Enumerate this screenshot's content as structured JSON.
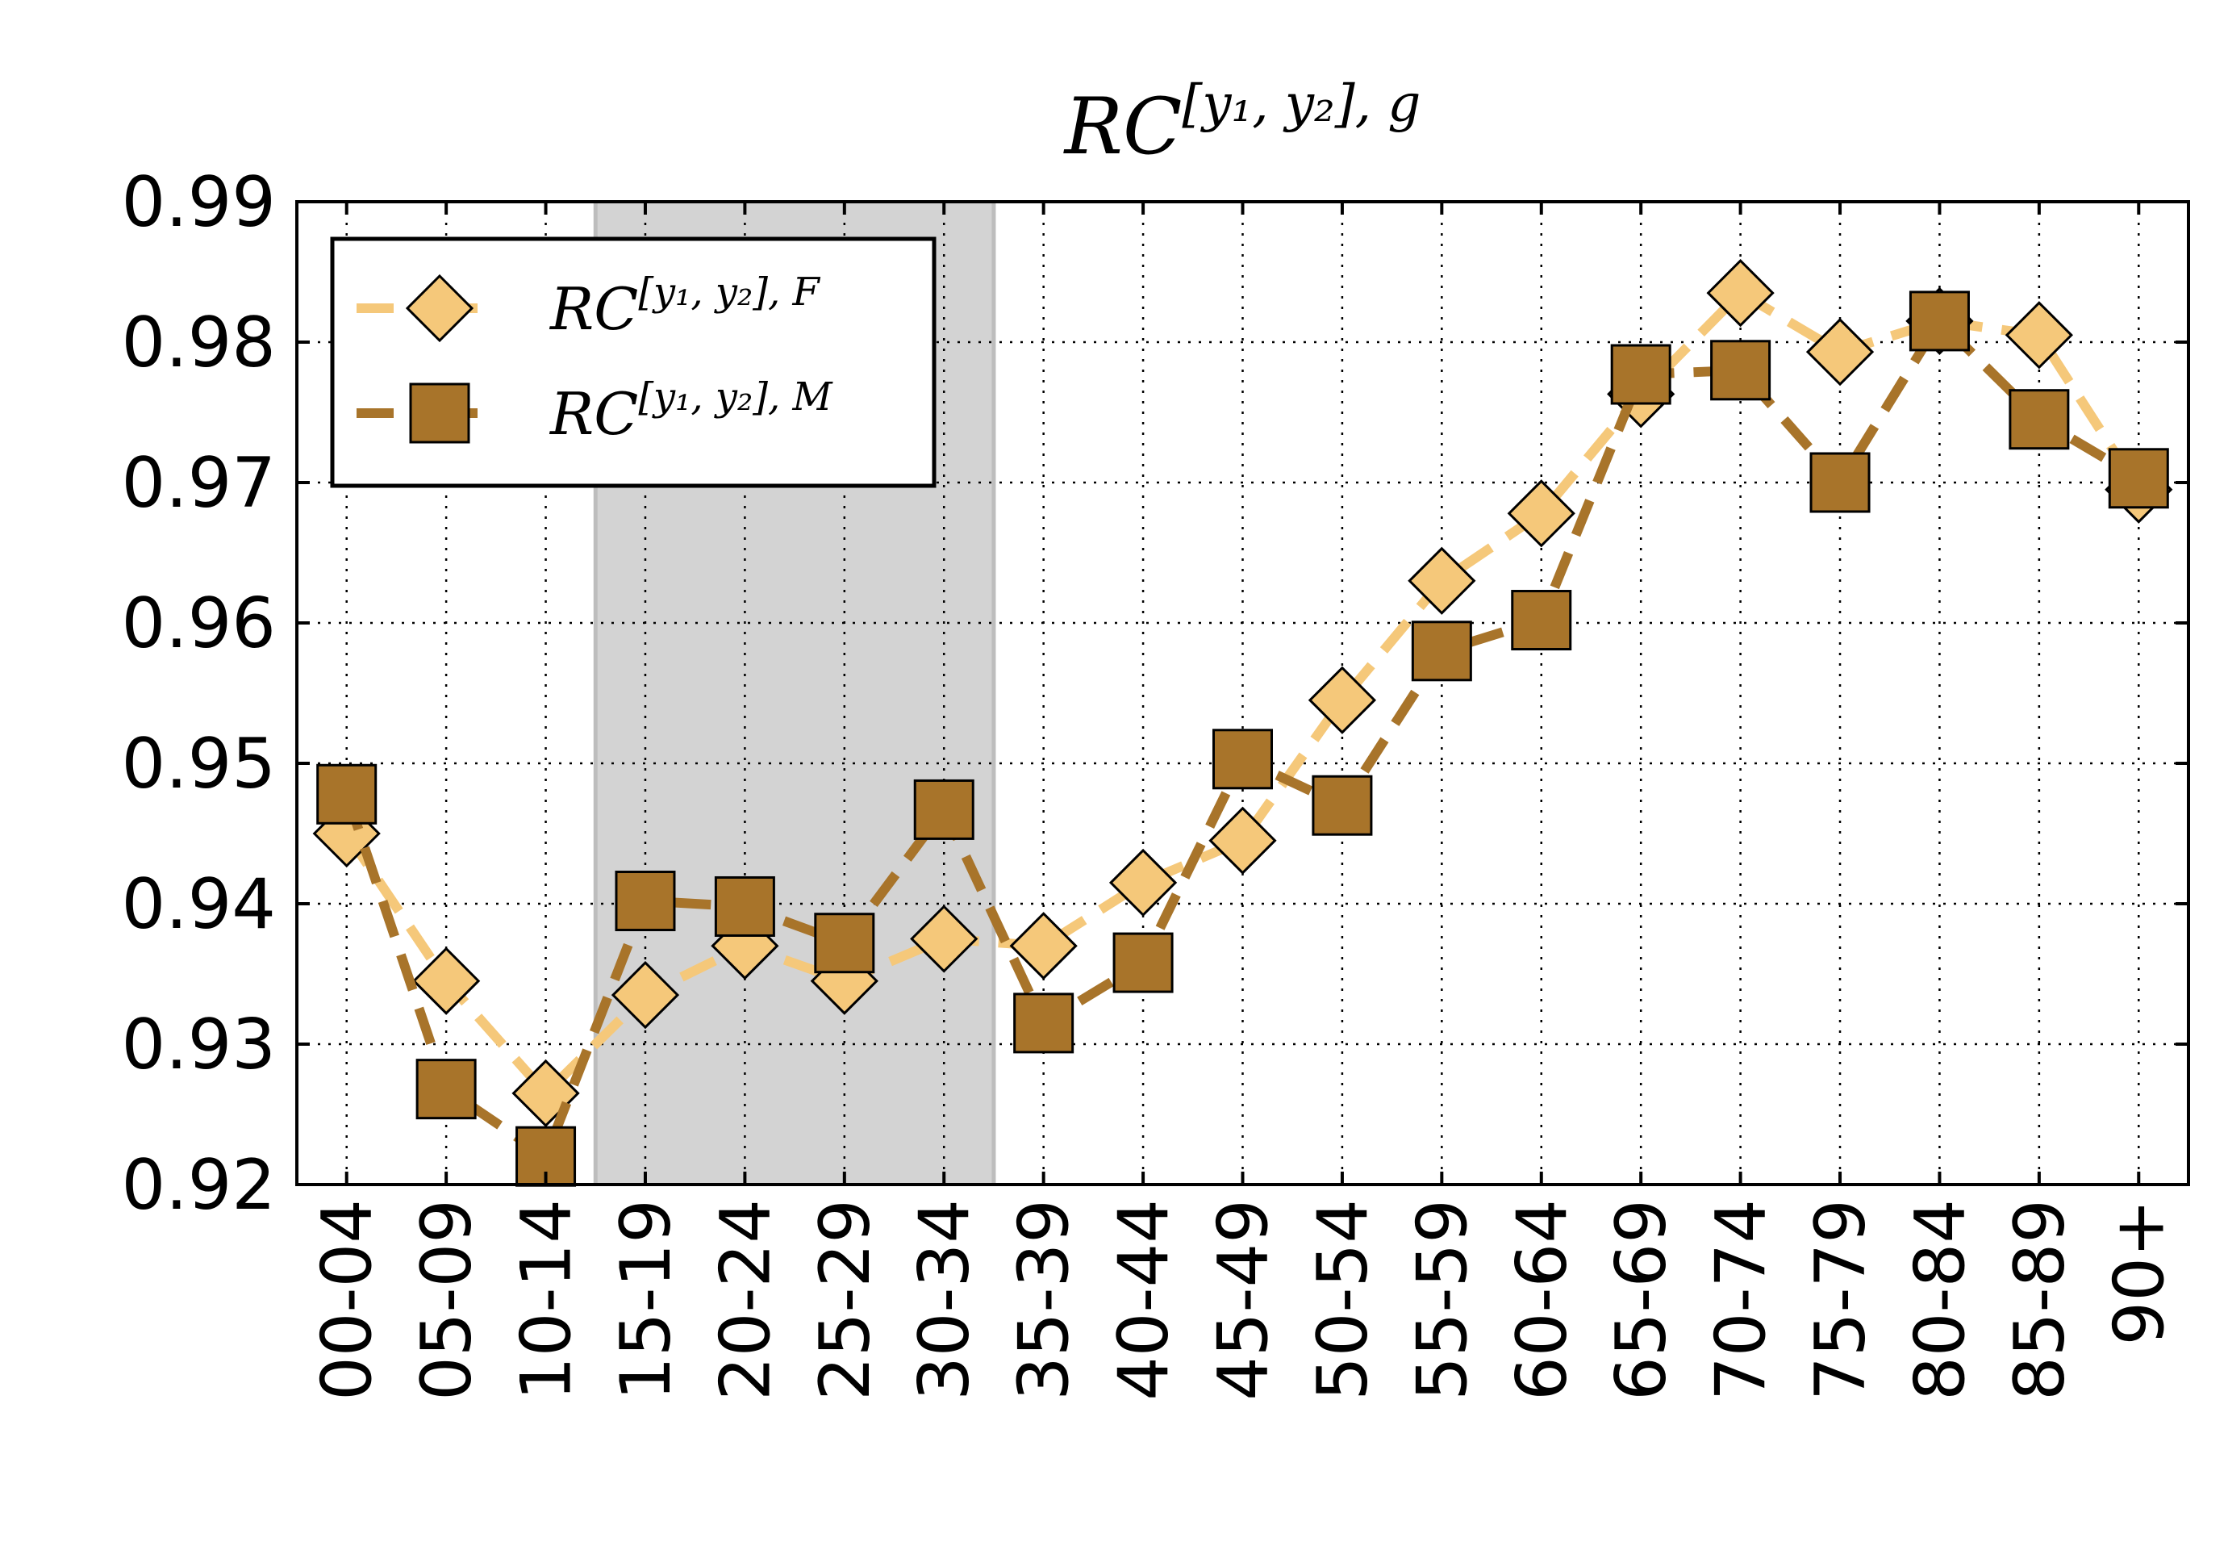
{
  "chart_data": {
    "type": "line",
    "title": {
      "base": "RC",
      "sup": "[y₁, y₂], g"
    },
    "xlabel": "",
    "ylabel": "",
    "categories": [
      "00-04",
      "05-09",
      "10-14",
      "15-19",
      "20-24",
      "25-29",
      "30-34",
      "35-39",
      "40-44",
      "45-49",
      "50-54",
      "55-59",
      "60-64",
      "65-69",
      "70-74",
      "75-79",
      "80-84",
      "85-89",
      "90+"
    ],
    "ylim": [
      0.92,
      0.99
    ],
    "yticks": [
      "0.92",
      "0.93",
      "0.94",
      "0.95",
      "0.96",
      "0.97",
      "0.98",
      "0.99"
    ],
    "grid": true,
    "shaded_range": [
      "15-19",
      "30-34"
    ],
    "legend_position": "top-left",
    "series": [
      {
        "name": "RC^[y₁, y₂], F",
        "legend_base": "RC",
        "legend_sup": "[y₁, y₂], F",
        "marker": "diamond",
        "line": "dashed",
        "color": "#F5C87A",
        "values": [
          0.945,
          0.9345,
          0.9265,
          0.9335,
          0.937,
          0.9345,
          0.9375,
          0.937,
          0.9415,
          0.9445,
          0.9545,
          0.963,
          0.9678,
          0.9763,
          0.9835,
          0.9793,
          0.9815,
          0.9805,
          0.9695
        ]
      },
      {
        "name": "RC^[y₁, y₂], M",
        "legend_base": "RC",
        "legend_sup": "[y₁, y₂], M",
        "marker": "square",
        "line": "dashed",
        "color": "#A8742A",
        "values": [
          0.9478,
          0.9268,
          0.922,
          0.9402,
          0.9398,
          0.9372,
          0.9467,
          0.9315,
          0.9358,
          0.9503,
          0.947,
          0.958,
          0.9602,
          0.9777,
          0.978,
          0.97,
          0.9815,
          0.9745,
          0.9703
        ]
      }
    ]
  }
}
